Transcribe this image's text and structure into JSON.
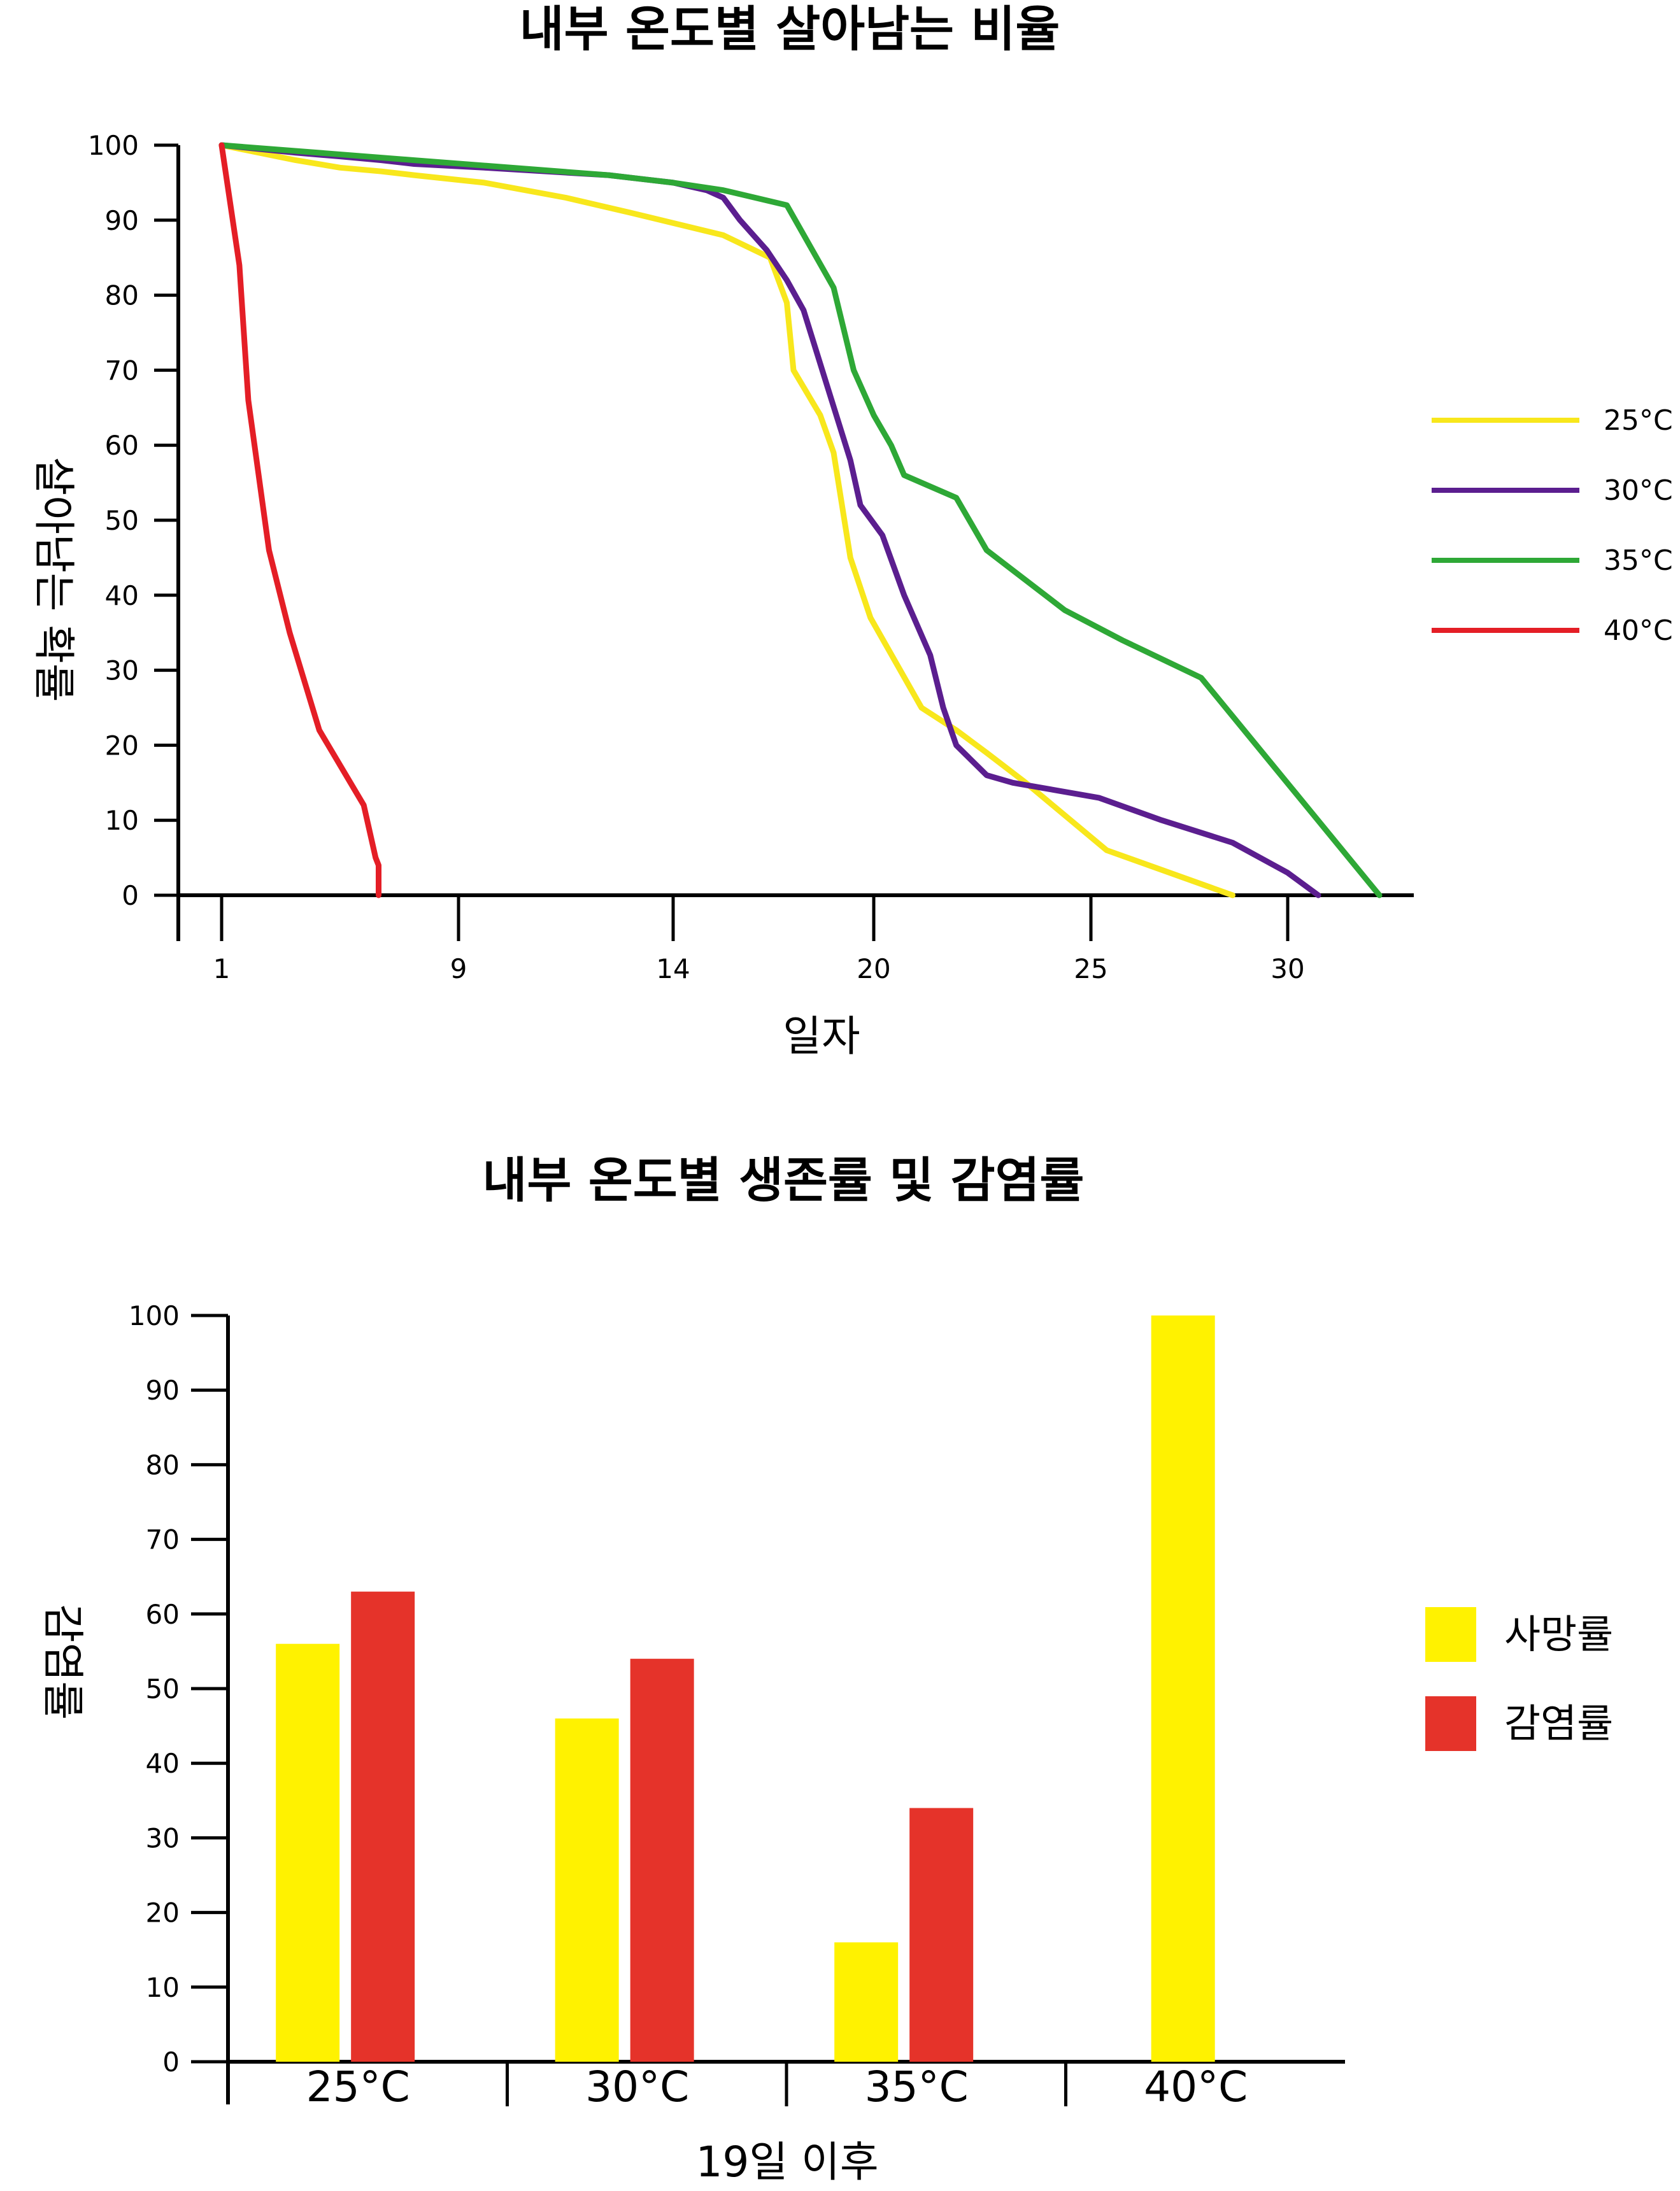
{
  "chart_data": [
    {
      "type": "line",
      "title": "내부 온도별 살아남는 비율",
      "xlabel": "일자",
      "ylabel": "살아남는 확률",
      "xticks": [
        1,
        9,
        14,
        20,
        25,
        30
      ],
      "yticks": [
        0,
        10,
        20,
        30,
        40,
        50,
        60,
        70,
        80,
        90,
        100
      ],
      "ylim": [
        0,
        100
      ],
      "legend_position": "right",
      "series": [
        {
          "name": "25°C",
          "color": "#F8E71C",
          "points": [
            [
              1,
              100
            ],
            [
              3.5,
              98
            ],
            [
              5,
              97
            ],
            [
              6.4,
              96.5
            ],
            [
              7.5,
              96
            ],
            [
              9.6,
              95
            ],
            [
              11.5,
              93
            ],
            [
              13,
              91
            ],
            [
              15.5,
              88
            ],
            [
              16.9,
              85
            ],
            [
              17.4,
              79
            ],
            [
              17.6,
              70
            ],
            [
              18.4,
              64
            ],
            [
              18.8,
              59
            ],
            [
              19.3,
              45
            ],
            [
              19.9,
              37
            ],
            [
              21.1,
              25
            ],
            [
              21.9,
              22
            ],
            [
              22.6,
              19
            ],
            [
              23.5,
              15
            ],
            [
              25.4,
              6
            ],
            [
              28.6,
              0
            ]
          ]
        },
        {
          "name": "30°C",
          "color": "#5B1E8F",
          "points": [
            [
              1,
              100
            ],
            [
              3.5,
              99
            ],
            [
              5,
              98.5
            ],
            [
              6.4,
              98
            ],
            [
              7.5,
              97.5
            ],
            [
              9.6,
              97
            ],
            [
              12.5,
              96
            ],
            [
              14,
              95
            ],
            [
              15,
              94
            ],
            [
              15.5,
              93
            ],
            [
              16,
              90
            ],
            [
              16.8,
              86
            ],
            [
              17.4,
              82
            ],
            [
              17.9,
              78
            ],
            [
              18.6,
              68
            ],
            [
              19.3,
              58
            ],
            [
              19.6,
              52
            ],
            [
              20.2,
              48
            ],
            [
              20.7,
              40
            ],
            [
              21.3,
              32
            ],
            [
              21.6,
              25
            ],
            [
              21.9,
              20
            ],
            [
              22.6,
              16
            ],
            [
              23.2,
              15
            ],
            [
              25.2,
              13
            ],
            [
              26.8,
              10
            ],
            [
              28.6,
              7
            ],
            [
              30.0,
              3
            ],
            [
              30.5,
              0
            ]
          ]
        },
        {
          "name": "35°C",
          "color": "#2EA836",
          "points": [
            [
              1,
              100
            ],
            [
              7.5,
              98
            ],
            [
              12.5,
              96
            ],
            [
              14,
              95
            ],
            [
              15.5,
              94
            ],
            [
              17.4,
              92
            ],
            [
              18.8,
              81
            ],
            [
              19.4,
              70
            ],
            [
              20.0,
              64
            ],
            [
              20.4,
              60
            ],
            [
              20.7,
              56
            ],
            [
              21.9,
              53
            ],
            [
              22.6,
              46
            ],
            [
              24.4,
              38
            ],
            [
              25.8,
              34
            ],
            [
              27.8,
              29
            ],
            [
              31.5,
              0
            ]
          ]
        },
        {
          "name": "40°C",
          "color": "#E41E26",
          "points": [
            [
              1,
              100
            ],
            [
              1.6,
              84
            ],
            [
              1.9,
              66
            ],
            [
              2.6,
              46
            ],
            [
              3.3,
              35
            ],
            [
              4.3,
              22
            ],
            [
              5.8,
              12
            ],
            [
              6.2,
              5
            ],
            [
              6.3,
              4
            ],
            [
              6.3,
              0
            ]
          ]
        }
      ]
    },
    {
      "type": "bar",
      "title": "내부 온도별 생존률 및 감염률",
      "xlabel": "19일 이후",
      "ylabel": "감염률",
      "categories": [
        "25°C",
        "30°C",
        "35°C",
        "40°C"
      ],
      "yticks": [
        0,
        10,
        20,
        30,
        40,
        50,
        60,
        70,
        80,
        90,
        100
      ],
      "ylim": [
        0,
        100
      ],
      "legend_position": "right",
      "series": [
        {
          "name": "사망률",
          "color": "#FFF200",
          "values": [
            56,
            46,
            16,
            100
          ]
        },
        {
          "name": "감염률",
          "color": "#E5332A",
          "values": [
            63,
            54,
            34,
            0
          ]
        }
      ]
    }
  ]
}
